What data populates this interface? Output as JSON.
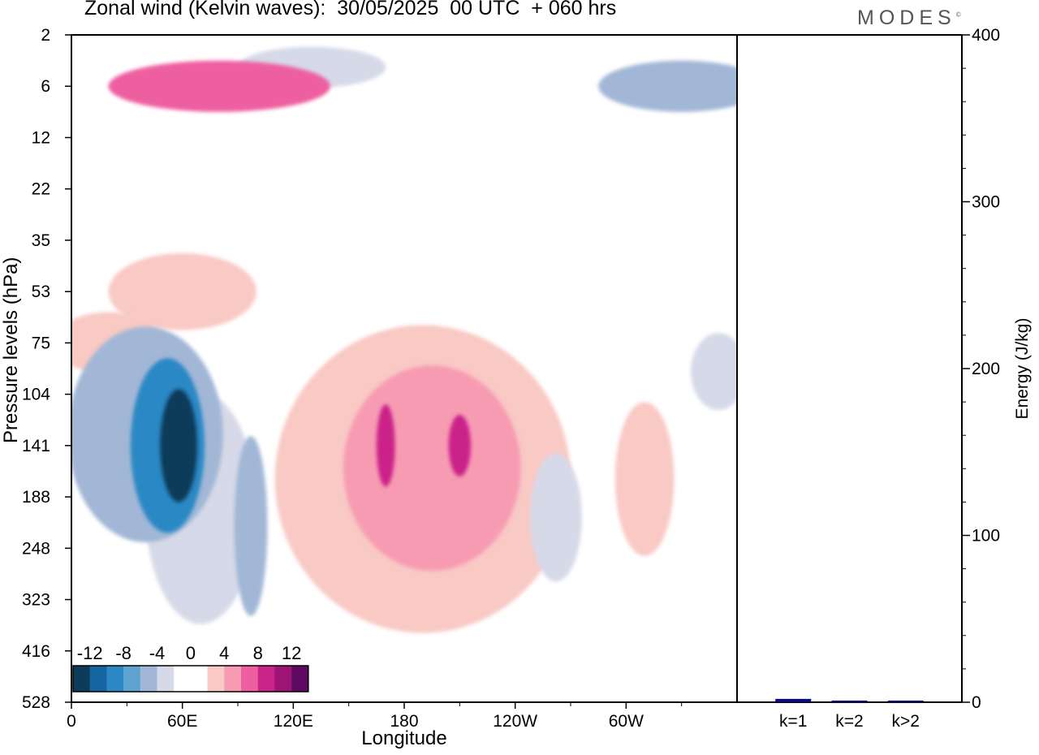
{
  "header": {
    "title": "Zonal wind (Kelvin waves):  30/05/2025  00 UTC  + 060 hrs",
    "brand": "MODES",
    "brand_mark": "©"
  },
  "chart_data": [
    {
      "type": "heatmap",
      "title": "Zonal wind (Kelvin waves):  30/05/2025  00 UTC  + 060 hrs",
      "xlabel": "Longitude",
      "ylabel": "Pressure levels (hPa)",
      "x_ticks": [
        "0",
        "60E",
        "120E",
        "180",
        "120W",
        "60W"
      ],
      "x_tick_degrees": [
        0,
        60,
        120,
        180,
        240,
        300
      ],
      "xlim": [
        0,
        360
      ],
      "y_ticks": [
        2,
        6,
        12,
        22,
        35,
        53,
        75,
        104,
        141,
        188,
        248,
        323,
        416,
        528
      ],
      "y_axis": "pressure levels, top 2 hPa to bottom 528 hPa",
      "colorbar": {
        "levels": [
          -14,
          -12,
          -10,
          -8,
          -6,
          -4,
          -2,
          0,
          2,
          4,
          6,
          8,
          10,
          12,
          14
        ],
        "tick_labels": [
          "-12",
          "-8",
          "-4",
          "0",
          "4",
          "8",
          "12"
        ],
        "colors": [
          "#0d3b5a",
          "#1566a0",
          "#2c88c4",
          "#5ea3cf",
          "#a2b7d6",
          "#d6d9e8",
          "#ffffff",
          "#ffffff",
          "#f9c9c4",
          "#f79bb3",
          "#ee5fa0",
          "#cb2489",
          "#9c1575",
          "#5e0a63"
        ],
        "placement": "bottom-left"
      },
      "features": [
        {
          "lon": 58,
          "level": 141,
          "value": -14,
          "rx": 10,
          "ry": 2.2
        },
        {
          "lon": 52,
          "level": 141,
          "value": -10,
          "rx": 20,
          "ry": 3.4
        },
        {
          "lon": 40,
          "level": 132,
          "value": -6,
          "rx": 42,
          "ry": 4.2
        },
        {
          "lon": 70,
          "level": 200,
          "value": -4,
          "rx": 30,
          "ry": 4.5
        },
        {
          "lon": 97,
          "level": 220,
          "value": -6,
          "rx": 9,
          "ry": 3.5
        },
        {
          "lon": 108,
          "level": 330,
          "value": -2,
          "rx": 12,
          "ry": 6
        },
        {
          "lon": 170,
          "level": 141,
          "value": 8,
          "rx": 5,
          "ry": 1.6
        },
        {
          "lon": 210,
          "level": 141,
          "value": 8,
          "rx": 6,
          "ry": 1.2
        },
        {
          "lon": 195,
          "level": 160,
          "value": 4,
          "rx": 48,
          "ry": 4
        },
        {
          "lon": 190,
          "level": 170,
          "value": 2,
          "rx": 80,
          "ry": 6
        },
        {
          "lon": 262,
          "level": 210,
          "value": -4,
          "rx": 14,
          "ry": 2.5
        },
        {
          "lon": 310,
          "level": 170,
          "value": 2,
          "rx": 16,
          "ry": 3
        },
        {
          "lon": 80,
          "level": 6,
          "value": 6,
          "rx": 60,
          "ry": 1
        },
        {
          "lon": 130,
          "level": 4,
          "value": -4,
          "rx": 40,
          "ry": 0.8
        },
        {
          "lon": 330,
          "level": 6,
          "value": -6,
          "rx": 45,
          "ry": 1
        },
        {
          "lon": 60,
          "level": 53,
          "value": 2,
          "rx": 40,
          "ry": 1.5
        },
        {
          "lon": 20,
          "level": 75,
          "value": 2,
          "rx": 30,
          "ry": 1.2
        },
        {
          "lon": 350,
          "level": 90,
          "value": -4,
          "rx": 15,
          "ry": 1.5
        }
      ]
    },
    {
      "type": "bar",
      "ylabel": "Energy (J/kg)",
      "categories": [
        "k=1",
        "k=2",
        "k>2"
      ],
      "values": [
        2,
        1,
        1
      ],
      "ylim": [
        0,
        400
      ],
      "y_ticks": [
        0,
        100,
        200,
        300,
        400
      ],
      "bar_color": "#0a0a8c"
    }
  ]
}
